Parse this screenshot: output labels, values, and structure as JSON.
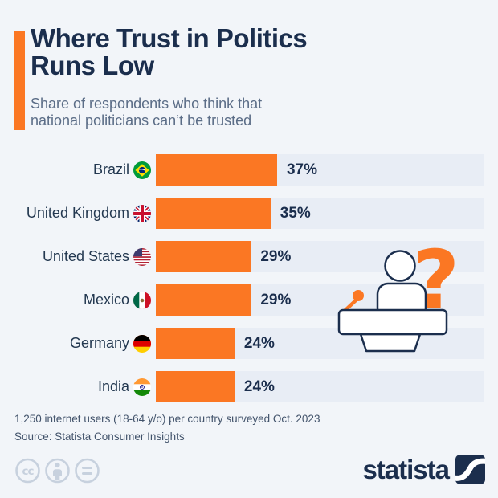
{
  "header": {
    "title_line1": "Where Trust in Politics",
    "title_line2": "Runs Low",
    "subtitle_line1": "Share of respondents who think that",
    "subtitle_line2": "national politicians can’t be trusted"
  },
  "chart_data": {
    "type": "bar",
    "orientation": "horizontal",
    "title": "Where Trust in Politics Runs Low",
    "subtitle": "Share of respondents who think that national politicians can’t be trusted",
    "categories": [
      "Brazil",
      "United Kingdom",
      "United States",
      "Mexico",
      "Germany",
      "India"
    ],
    "values": [
      37,
      35,
      29,
      29,
      24,
      24
    ],
    "value_labels": [
      "37%",
      "35%",
      "29%",
      "29%",
      "24%",
      "24%"
    ],
    "unit": "%",
    "xlim": [
      0,
      100
    ],
    "grid": false,
    "legend": false,
    "bar_color": "#fb7723",
    "track_color": "#e8edf5",
    "flag_icons": [
      "brazil-flag-icon",
      "united-kingdom-flag-icon",
      "united-states-flag-icon",
      "mexico-flag-icon",
      "germany-flag-icon",
      "india-flag-icon"
    ]
  },
  "illustration": {
    "name": "speaker-at-podium-with-question-mark",
    "question_mark": "?",
    "accent_color": "#fb7723",
    "outline_color": "#1b2e4d"
  },
  "footer": {
    "note": "1,250 internet users (18-64 y/o) per country surveyed Oct. 2023",
    "source": "Source: Statista Consumer Insights",
    "license_icons": [
      "cc-icon",
      "attribution-person-icon",
      "equals-icon"
    ],
    "brand_name": "statista"
  },
  "colors": {
    "background": "#f2f5f9",
    "accent_orange": "#fb7723",
    "title_navy": "#1b2e4d",
    "subtitle_gray": "#5b6d87",
    "footer_gray": "#42536b",
    "license_gray": "#c7d1de"
  }
}
